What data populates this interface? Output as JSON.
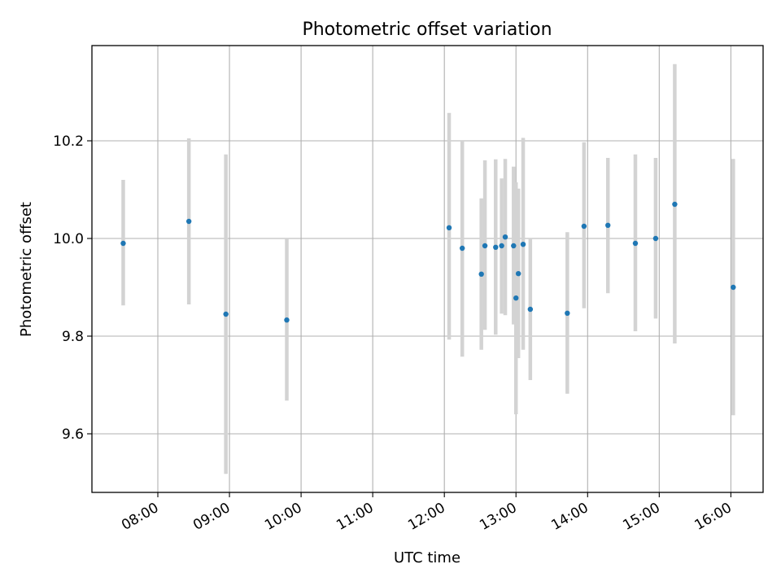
{
  "chart_data": {
    "type": "scatter",
    "title": "Photometric offset variation",
    "xlabel": "UTC time",
    "ylabel": "Photometric offset",
    "x_tick_labels": [
      "08:00",
      "09:00",
      "10:00",
      "11:00",
      "12:00",
      "13:00",
      "14:00",
      "15:00",
      "16:00"
    ],
    "x_ticks_hours": [
      8,
      9,
      10,
      11,
      12,
      13,
      14,
      15,
      16
    ],
    "xlim_hours": [
      7.08,
      16.45
    ],
    "y_tick_labels": [
      "9.6",
      "9.8",
      "10.0",
      "10.2"
    ],
    "y_ticks": [
      9.6,
      9.8,
      10.0,
      10.2
    ],
    "ylim": [
      9.48,
      10.395
    ],
    "grid": true,
    "colors": {
      "point": "#1f77b4",
      "errorbar": "#d3d3d3",
      "grid": "#b0b0b0",
      "axes": "#000000"
    },
    "series": [
      {
        "points": [
          {
            "x": "07:31",
            "y": 9.99,
            "lo": 9.863,
            "hi": 10.12
          },
          {
            "x": "08:26",
            "y": 10.035,
            "lo": 9.865,
            "hi": 10.205
          },
          {
            "x": "08:57",
            "y": 9.845,
            "lo": 9.518,
            "hi": 10.172
          },
          {
            "x": "09:48",
            "y": 9.833,
            "lo": 9.668,
            "hi": 10.0
          },
          {
            "x": "12:04",
            "y": 10.022,
            "lo": 9.793,
            "hi": 10.257
          },
          {
            "x": "12:15",
            "y": 9.98,
            "lo": 9.758,
            "hi": 10.2
          },
          {
            "x": "12:31",
            "y": 9.927,
            "lo": 9.772,
            "hi": 10.082
          },
          {
            "x": "12:34",
            "y": 9.985,
            "lo": 9.813,
            "hi": 10.16
          },
          {
            "x": "12:43",
            "y": 9.982,
            "lo": 9.803,
            "hi": 10.162
          },
          {
            "x": "12:48",
            "y": 9.985,
            "lo": 9.846,
            "hi": 10.123
          },
          {
            "x": "12:51",
            "y": 10.003,
            "lo": 9.843,
            "hi": 10.163
          },
          {
            "x": "12:58",
            "y": 9.985,
            "lo": 9.824,
            "hi": 10.147
          },
          {
            "x": "13:00",
            "y": 9.878,
            "lo": 9.64,
            "hi": 10.115
          },
          {
            "x": "13:02",
            "y": 9.928,
            "lo": 9.755,
            "hi": 10.102
          },
          {
            "x": "13:06",
            "y": 9.988,
            "lo": 9.772,
            "hi": 10.206
          },
          {
            "x": "13:12",
            "y": 9.855,
            "lo": 9.71,
            "hi": 10.0
          },
          {
            "x": "13:43",
            "y": 9.847,
            "lo": 9.682,
            "hi": 10.013
          },
          {
            "x": "13:57",
            "y": 10.025,
            "lo": 9.857,
            "hi": 10.197
          },
          {
            "x": "14:17",
            "y": 10.027,
            "lo": 9.888,
            "hi": 10.165
          },
          {
            "x": "14:40",
            "y": 9.99,
            "lo": 9.81,
            "hi": 10.172
          },
          {
            "x": "14:57",
            "y": 10.0,
            "lo": 9.836,
            "hi": 10.165
          },
          {
            "x": "15:13",
            "y": 10.07,
            "lo": 9.785,
            "hi": 10.357
          },
          {
            "x": "16:02",
            "y": 9.9,
            "lo": 9.638,
            "hi": 10.163
          }
        ]
      }
    ]
  }
}
